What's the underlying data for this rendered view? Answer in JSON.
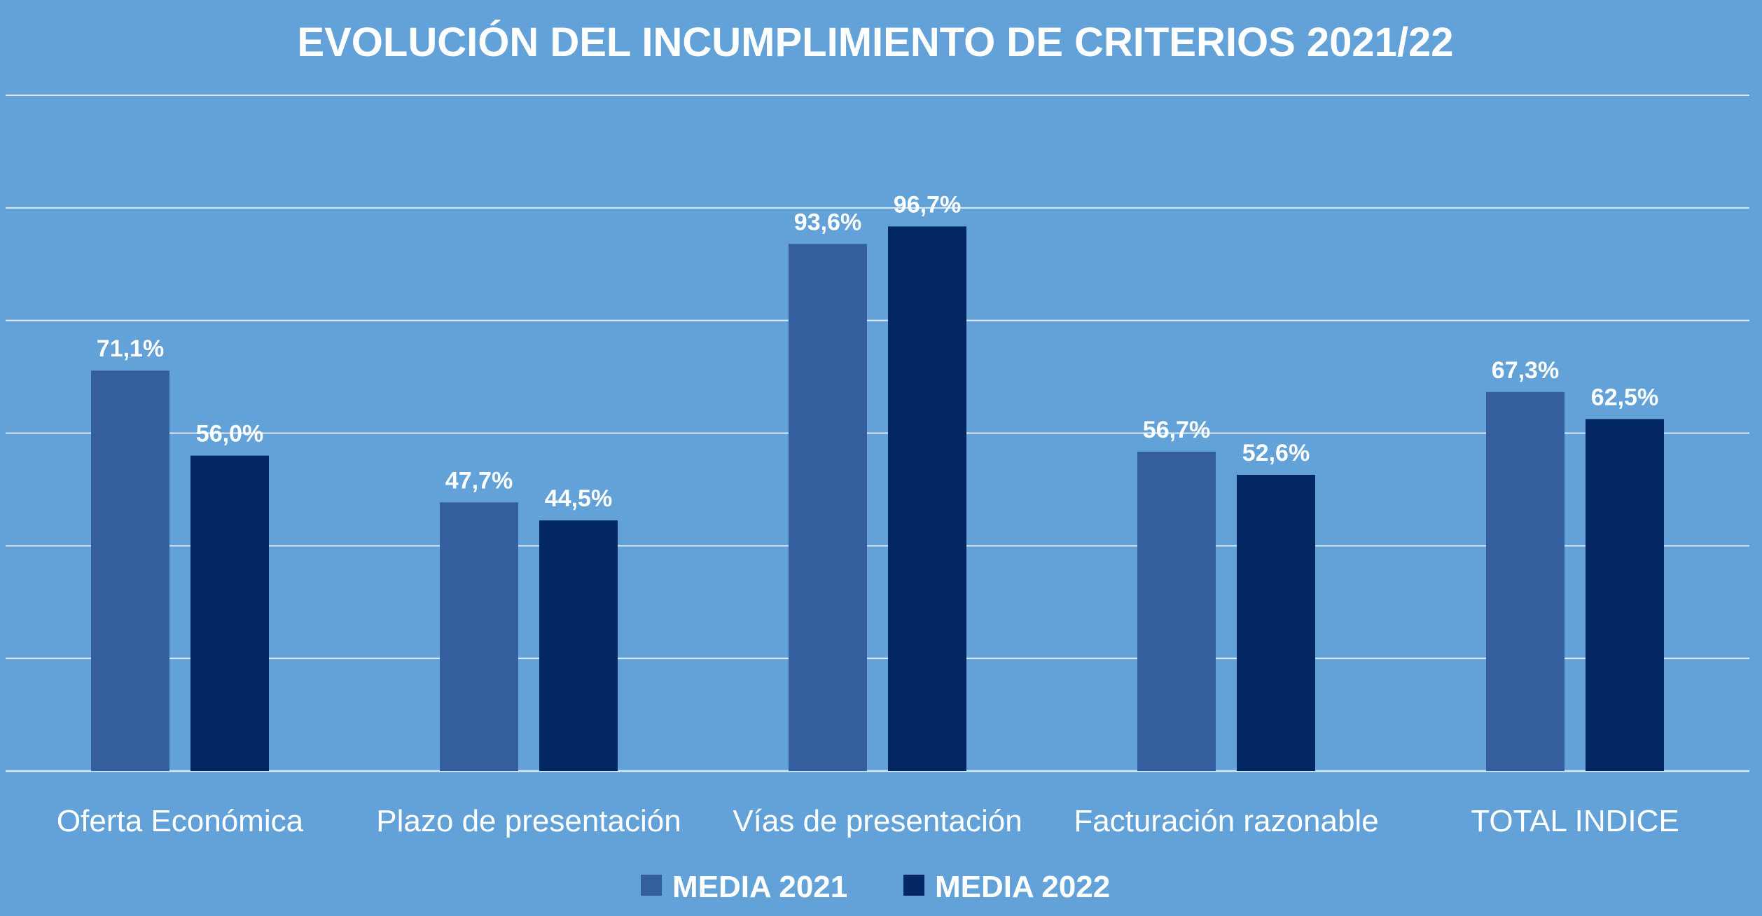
{
  "chart_data": {
    "type": "bar",
    "title": "EVOLUCIÓN DEL INCUMPLIMIENTO DE CRITERIOS 2021/22",
    "categories": [
      "Oferta Económica",
      "Plazo de presentación",
      "Vías de presentación",
      "Facturación razonable",
      "TOTAL INDICE"
    ],
    "series": [
      {
        "name": "MEDIA 2021",
        "values": [
          71.1,
          47.7,
          93.6,
          56.7,
          67.3
        ],
        "labels": [
          "71,1%",
          "47,7%",
          "93,6%",
          "56,7%",
          "67,3%"
        ],
        "color": "#345e9e"
      },
      {
        "name": "MEDIA 2022",
        "values": [
          56.0,
          44.5,
          96.7,
          52.6,
          62.5
        ],
        "labels": [
          "56,0%",
          "44,5%",
          "96,7%",
          "52,6%",
          "62,5%"
        ],
        "color": "#022762"
      }
    ],
    "ylim": [
      0,
      120
    ],
    "grid": true,
    "legend": "bottom",
    "background": "#62a2d8",
    "gridline_color": "#dce9f5",
    "text_color": "#ffffff"
  }
}
